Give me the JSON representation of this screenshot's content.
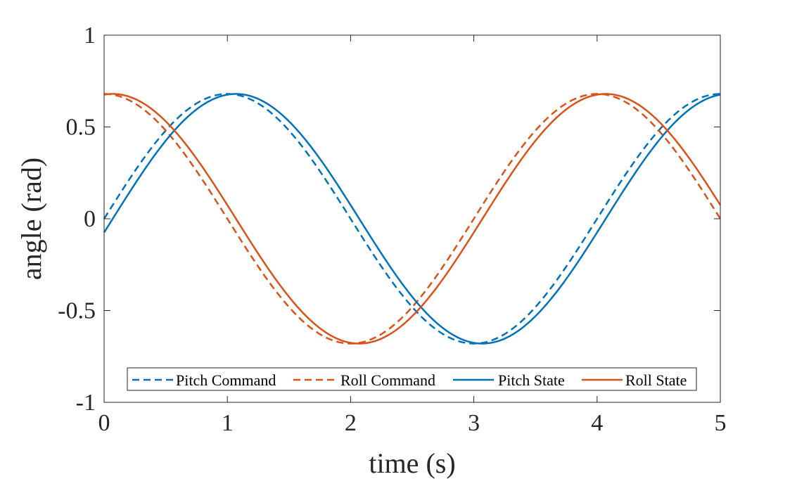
{
  "chart_data": {
    "type": "line",
    "title": "",
    "xlabel": "time (s)",
    "ylabel": "angle (rad)",
    "xlim": [
      0,
      5
    ],
    "ylim": [
      -1,
      1
    ],
    "xticks": [
      "0",
      "1",
      "2",
      "3",
      "4",
      "5"
    ],
    "yticks": [
      "1",
      "0.5",
      "0",
      "-0.5",
      "-1"
    ],
    "grid": false,
    "legend_position": "bottom-center",
    "sampling": {
      "t_start": 0,
      "t_end": 5,
      "step": 0.02
    },
    "series": [
      {
        "name": "Pitch Command",
        "style": "dashed",
        "color": "#0072BD",
        "amplitude": 0.68,
        "period": 4,
        "phase_delay": 0.0,
        "wave": "sin"
      },
      {
        "name": "Roll Command",
        "style": "dashed",
        "color": "#D95319",
        "amplitude": 0.68,
        "period": 4,
        "phase_delay": 0.0,
        "wave": "cos"
      },
      {
        "name": "Pitch State",
        "style": "solid",
        "color": "#0072BD",
        "amplitude": 0.68,
        "period": 4,
        "phase_delay": 0.07,
        "wave": "sin"
      },
      {
        "name": "Roll State",
        "style": "solid",
        "color": "#D95319",
        "amplitude": 0.68,
        "period": 4,
        "phase_delay": 0.07,
        "wave": "cos"
      }
    ]
  }
}
